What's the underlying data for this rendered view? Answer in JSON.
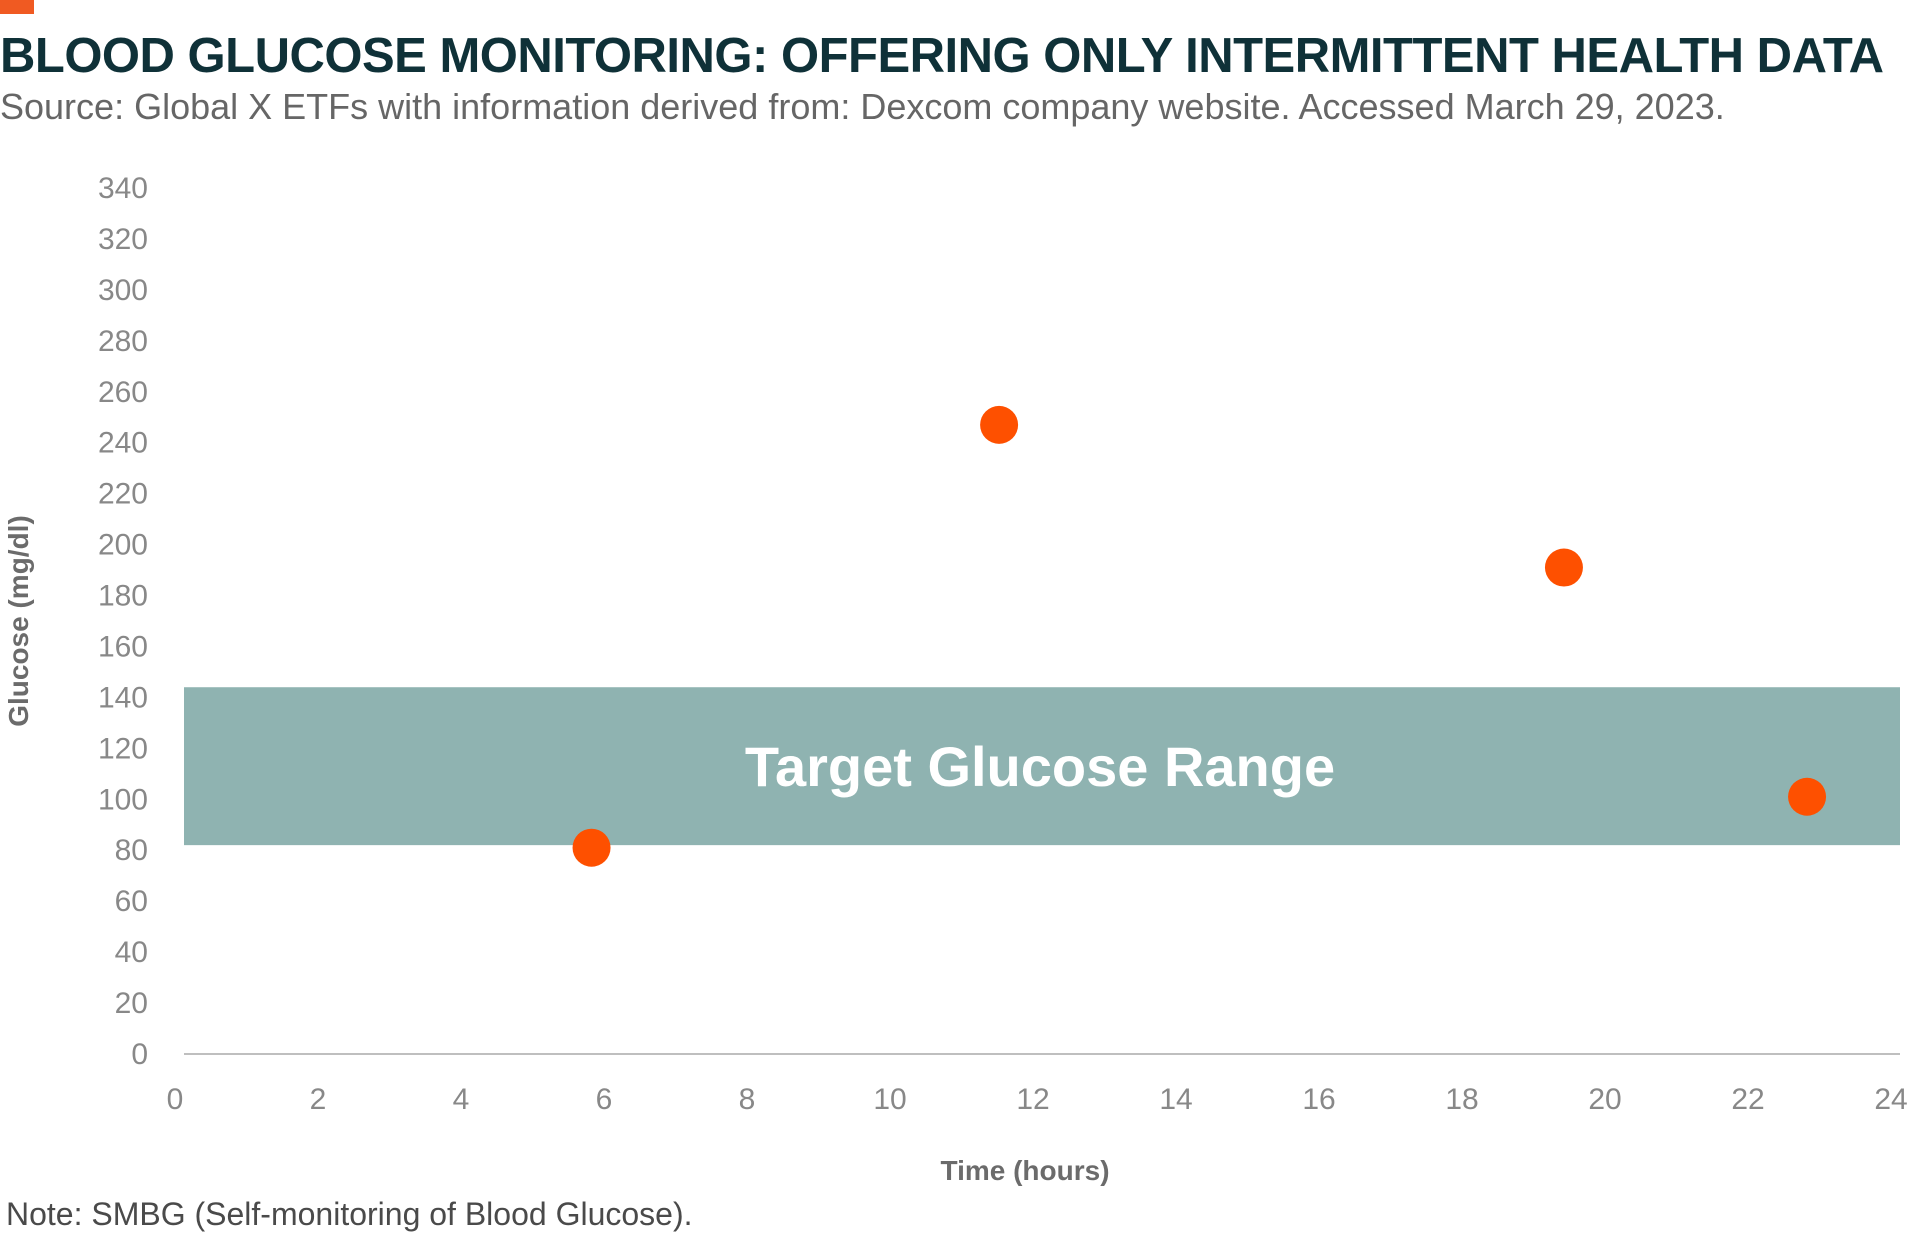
{
  "header": {
    "title": "BLOOD GLUCOSE MONITORING: OFFERING ONLY INTERMITTENT HEALTH DATA",
    "subtitle": "Source: Global X ETFs with information derived from: Dexcom company website. Accessed March 29, 2023."
  },
  "footer": {
    "note": "Note: SMBG (Self-monitoring of Blood Glucose)."
  },
  "colors": {
    "accent": "#f05a22",
    "point": "#fe5000",
    "band": "#8fb3b1",
    "title": "#0f3138"
  },
  "chart_data": {
    "type": "scatter",
    "title": "",
    "xlabel": "Time (hours)",
    "ylabel": "Glucose (mg/dl)",
    "xlim": [
      0,
      24
    ],
    "ylim": [
      0,
      340
    ],
    "xticks": [
      0,
      2,
      4,
      6,
      8,
      10,
      12,
      14,
      16,
      18,
      20,
      22,
      24
    ],
    "yticks": [
      0,
      20,
      40,
      60,
      80,
      100,
      120,
      140,
      160,
      180,
      200,
      220,
      240,
      260,
      280,
      300,
      320,
      340
    ],
    "grid": false,
    "points": [
      {
        "x": 5.7,
        "y": 81
      },
      {
        "x": 11.4,
        "y": 247
      },
      {
        "x": 19.3,
        "y": 191
      },
      {
        "x": 22.7,
        "y": 101
      }
    ],
    "band": {
      "label": "Target Glucose Range",
      "y_from": 82,
      "y_to": 144
    }
  }
}
